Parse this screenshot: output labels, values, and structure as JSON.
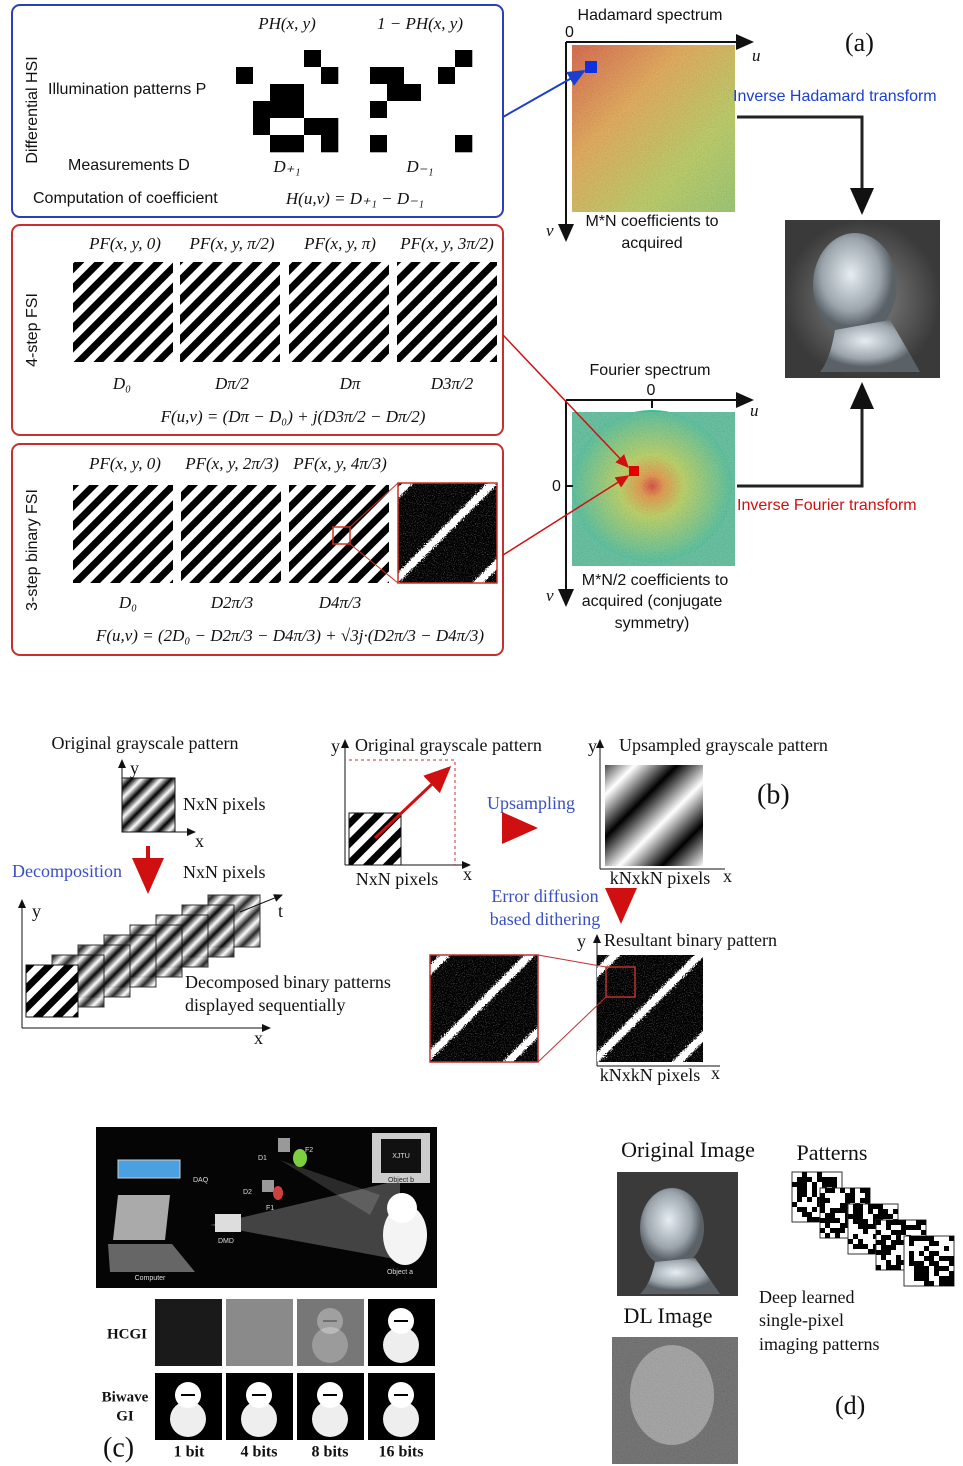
{
  "panel_a": {
    "label": "(a)",
    "hsi": {
      "title": "Differential HSI",
      "row_patterns": "Illumination patterns P",
      "row_measurements": "Measurements D",
      "row_coefficient": "Computation of coefficient",
      "patterns": [
        "PH(x, y)",
        "1 − PH(x, y)"
      ],
      "measurements": [
        "D₊₁",
        "D₋₁"
      ],
      "formula": "H(u,v) = D₊₁ − D₋₁"
    },
    "hadamard": {
      "title": "Hadamard spectrum",
      "origin": "0",
      "u": "u",
      "v": "v",
      "note": [
        "M*N coefficients to",
        "acquired"
      ],
      "transform": "Inverse Hadamard transform"
    },
    "fsi4": {
      "title": "4-step FSI",
      "patterns": [
        "PF(x, y, 0)",
        "PF(x, y, π/2)",
        "PF(x, y, π)",
        "PF(x, y, 3π/2)"
      ],
      "measurements": [
        "D₀",
        "Dπ/2",
        "Dπ",
        "D3π/2"
      ],
      "formula": "F(u,v) = (Dπ − D₀) + j(D3π/2 − Dπ/2)"
    },
    "fourier": {
      "title": "Fourier spectrum",
      "origin_u": "0",
      "origin_v": "0",
      "u": "u",
      "v": "v",
      "note": [
        "M*N/2 coefficients to",
        "acquired (conjugate",
        "symmetry)"
      ],
      "transform": "Inverse Fourier transform"
    },
    "fsi3": {
      "title": "3-step binary FSI",
      "patterns": [
        "PF(x, y, 0)",
        "PF(x, y, 2π/3)",
        "PF(x, y, 4π/3)"
      ],
      "measurements": [
        "D₀",
        "D2π/3",
        "D4π/3"
      ],
      "formula": "F(u,v) = (2D₀ − D2π/3 − D4π/3) + √3j·(D2π/3 − D4π/3)"
    }
  },
  "panel_b": {
    "label": "(b)",
    "left": {
      "title": "Original grayscale pattern",
      "y": "y",
      "x": "x",
      "size": "NxN pixels",
      "step": "Decomposition",
      "stack_size": "NxN pixels",
      "stack_y": "y",
      "stack_t": "t",
      "stack_x": "x",
      "stack_note": [
        "Decomposed binary patterns",
        "displayed sequentially"
      ]
    },
    "middle": {
      "y": "y",
      "title": "Original grayscale pattern",
      "size": "NxN pixels",
      "x": "x",
      "step": "Upsampling"
    },
    "right": {
      "y": "y",
      "title": "Upsampled grayscale pattern",
      "size": "kNxkN pixels",
      "x": "x",
      "step": [
        "Error diffusion",
        "based dithering"
      ],
      "binary_y": "y",
      "binary_title": "Resultant binary pattern",
      "binary_size": "kNxkN pixels",
      "binary_x": "x"
    }
  },
  "panel_c": {
    "label": "(c)",
    "setup": {
      "daq": "DAQ",
      "d1": "D1",
      "d2": "D2",
      "f1": "F1",
      "f2": "F2",
      "dmd": "DMD",
      "computer": "Computer",
      "object_a": "Object a",
      "object_b": "Object b",
      "object_text": "XJTU"
    },
    "rows": [
      "HCGI",
      [
        "Biwave",
        "GI"
      ]
    ],
    "columns": [
      "1 bit",
      "4 bits",
      "8 bits",
      "16 bits"
    ]
  },
  "panel_d": {
    "label": "(d)",
    "original": "Original Image",
    "patterns": "Patterns",
    "dl": "DL Image",
    "note": [
      "Deep learned",
      "single-pixel",
      "imaging patterns"
    ]
  }
}
